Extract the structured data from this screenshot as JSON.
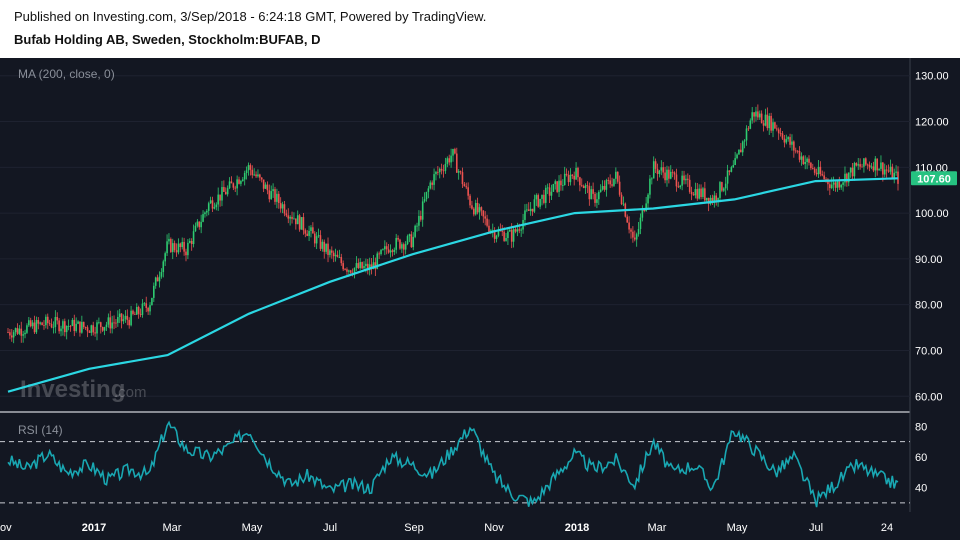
{
  "header": {
    "published": "Published on Investing.com, 3/Sep/2018 - 6:24:18 GMT, Powered by TradingView.",
    "title": "Bufab Holding AB, Sweden, Stockholm:BUFAB, D"
  },
  "main_pane": {
    "indicator_label": "MA (200, close, 0)",
    "last_price_label": "107.60",
    "watermark": {
      "brand": "Investing",
      "suffix": ".com"
    }
  },
  "rsi_pane": {
    "indicator_label": "RSI (14)"
  },
  "colors": {
    "background": "#131722",
    "up": "#26a69a",
    "up_bright": "#2ecc71",
    "down": "#ef5350",
    "ma_line": "#2bd7e3",
    "rsi_line": "#19a7b2",
    "last_price_bg": "#26c281"
  },
  "chart_data": [
    {
      "type": "line",
      "title": "Bufab Holding AB, Sweden, Stockholm:BUFAB, D",
      "subtype": "candlestick",
      "x_tick_labels": [
        "ov",
        "2017",
        "Mar",
        "May",
        "Jul",
        "Sep",
        "Nov",
        "2018",
        "Mar",
        "May",
        "Jul",
        "24"
      ],
      "y_tick_labels": [
        "130.00",
        "120.00",
        "110.00",
        "100.00",
        "90.00",
        "80.00",
        "70.00",
        "60.00"
      ],
      "ylim": [
        57,
        133
      ],
      "close_series": {
        "name": "close",
        "x": [
          "2016-11-01",
          "2016-12-01",
          "2017-01-01",
          "2017-02-01",
          "2017-02-15",
          "2017-03-01",
          "2017-03-15",
          "2017-04-01",
          "2017-04-15",
          "2017-05-01",
          "2017-05-15",
          "2017-06-01",
          "2017-06-15",
          "2017-07-01",
          "2017-07-15",
          "2017-08-01",
          "2017-08-15",
          "2017-09-01",
          "2017-09-15",
          "2017-10-01",
          "2017-10-15",
          "2017-11-01",
          "2017-11-15",
          "2017-12-01",
          "2017-12-15",
          "2018-01-01",
          "2018-01-15",
          "2018-02-01",
          "2018-02-15",
          "2018-03-01",
          "2018-03-15",
          "2018-04-01",
          "2018-04-15",
          "2018-05-01",
          "2018-05-15",
          "2018-06-01",
          "2018-06-15",
          "2018-07-01",
          "2018-07-15",
          "2018-08-01",
          "2018-08-15",
          "2018-09-01"
        ],
        "values": [
          74,
          76,
          75,
          77,
          80,
          93,
          92,
          102,
          105,
          110,
          105,
          100,
          96,
          91,
          88,
          88,
          93,
          94,
          107,
          113,
          102,
          96,
          95,
          102,
          105,
          109,
          103,
          108,
          93,
          110,
          108,
          105,
          103,
          110,
          122,
          119,
          114,
          109,
          106,
          110,
          111,
          107.6
        ]
      },
      "ma200": {
        "name": "MA (200, close, 0)",
        "x": [
          "2016-11-01",
          "2017-01-01",
          "2017-03-01",
          "2017-05-01",
          "2017-07-01",
          "2017-09-01",
          "2017-11-01",
          "2018-01-01",
          "2018-03-01",
          "2018-05-01",
          "2018-07-01",
          "2018-09-01"
        ],
        "values": [
          61,
          66,
          69,
          78,
          85,
          91,
          96,
          100,
          101,
          103,
          107,
          107.6
        ]
      },
      "last_value": 107.6
    },
    {
      "type": "line",
      "series": [
        {
          "name": "RSI (14)",
          "x": [
            "2016-11-01",
            "2016-11-15",
            "2016-12-01",
            "2016-12-15",
            "2017-01-01",
            "2017-01-15",
            "2017-02-01",
            "2017-02-15",
            "2017-03-01",
            "2017-03-15",
            "2017-04-01",
            "2017-04-15",
            "2017-05-01",
            "2017-05-15",
            "2017-06-01",
            "2017-06-15",
            "2017-07-01",
            "2017-07-15",
            "2017-08-01",
            "2017-08-15",
            "2017-09-01",
            "2017-09-15",
            "2017-10-01",
            "2017-10-15",
            "2017-11-01",
            "2017-11-15",
            "2017-12-01",
            "2017-12-15",
            "2018-01-01",
            "2018-01-15",
            "2018-02-01",
            "2018-02-15",
            "2018-03-01",
            "2018-03-15",
            "2018-04-01",
            "2018-04-15",
            "2018-05-01",
            "2018-05-15",
            "2018-06-01",
            "2018-06-15",
            "2018-07-01",
            "2018-07-15",
            "2018-08-01",
            "2018-08-15",
            "2018-09-01"
          ],
          "values": [
            58,
            52,
            62,
            50,
            55,
            45,
            52,
            48,
            82,
            65,
            60,
            66,
            78,
            58,
            42,
            48,
            38,
            42,
            40,
            60,
            55,
            48,
            65,
            80,
            48,
            36,
            30,
            45,
            62,
            52,
            58,
            42,
            70,
            50,
            55,
            40,
            78,
            66,
            50,
            60,
            31,
            42,
            55,
            48,
            42
          ]
        }
      ],
      "y_tick_labels": [
        "80",
        "60",
        "40"
      ],
      "ylim": [
        24,
        88
      ],
      "levels": [
        70,
        30
      ]
    }
  ]
}
